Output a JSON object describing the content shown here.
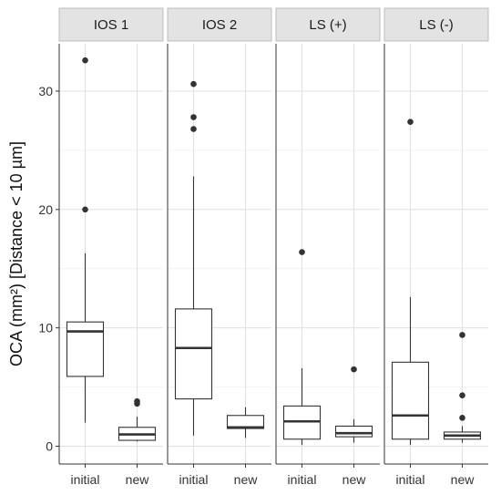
{
  "chart_data": {
    "type": "boxplot",
    "ylabel": "OCA (mm²) [Distance < 10 µm]",
    "xlabel": "",
    "ylim": [
      -1.5,
      34
    ],
    "yticks": [
      0,
      10,
      20,
      30
    ],
    "grid": true,
    "facets": [
      {
        "label": "IOS 1",
        "groups": [
          {
            "name": "initial",
            "min": 2.0,
            "q1": 5.9,
            "median": 9.7,
            "q3": 10.5,
            "max": 16.3,
            "outliers": [
              20.0,
              32.6
            ]
          },
          {
            "name": "new",
            "min": 0.4,
            "q1": 0.5,
            "median": 1.0,
            "q3": 1.6,
            "max": 2.5,
            "outliers": [
              3.6,
              3.8
            ]
          }
        ]
      },
      {
        "label": "IOS 2",
        "groups": [
          {
            "name": "initial",
            "min": 0.9,
            "q1": 4.0,
            "median": 8.3,
            "q3": 11.6,
            "max": 22.8,
            "outliers": [
              26.8,
              27.8,
              30.6
            ]
          },
          {
            "name": "new",
            "min": 0.7,
            "q1": 1.5,
            "median": 1.6,
            "q3": 2.6,
            "max": 3.3,
            "outliers": []
          }
        ]
      },
      {
        "label": "LS (+)",
        "groups": [
          {
            "name": "initial",
            "min": 0.1,
            "q1": 0.6,
            "median": 2.1,
            "q3": 3.4,
            "max": 6.6,
            "outliers": [
              16.4
            ]
          },
          {
            "name": "new",
            "min": 0.3,
            "q1": 0.8,
            "median": 1.1,
            "q3": 1.7,
            "max": 2.3,
            "outliers": [
              6.5
            ]
          }
        ]
      },
      {
        "label": "LS (-)",
        "groups": [
          {
            "name": "initial",
            "min": 0.1,
            "q1": 0.6,
            "median": 2.6,
            "q3": 7.1,
            "max": 12.6,
            "outliers": [
              27.4
            ]
          },
          {
            "name": "new",
            "min": 0.3,
            "q1": 0.6,
            "median": 0.9,
            "q3": 1.2,
            "max": 1.7,
            "outliers": [
              2.4,
              4.3,
              9.4
            ]
          }
        ]
      }
    ]
  }
}
